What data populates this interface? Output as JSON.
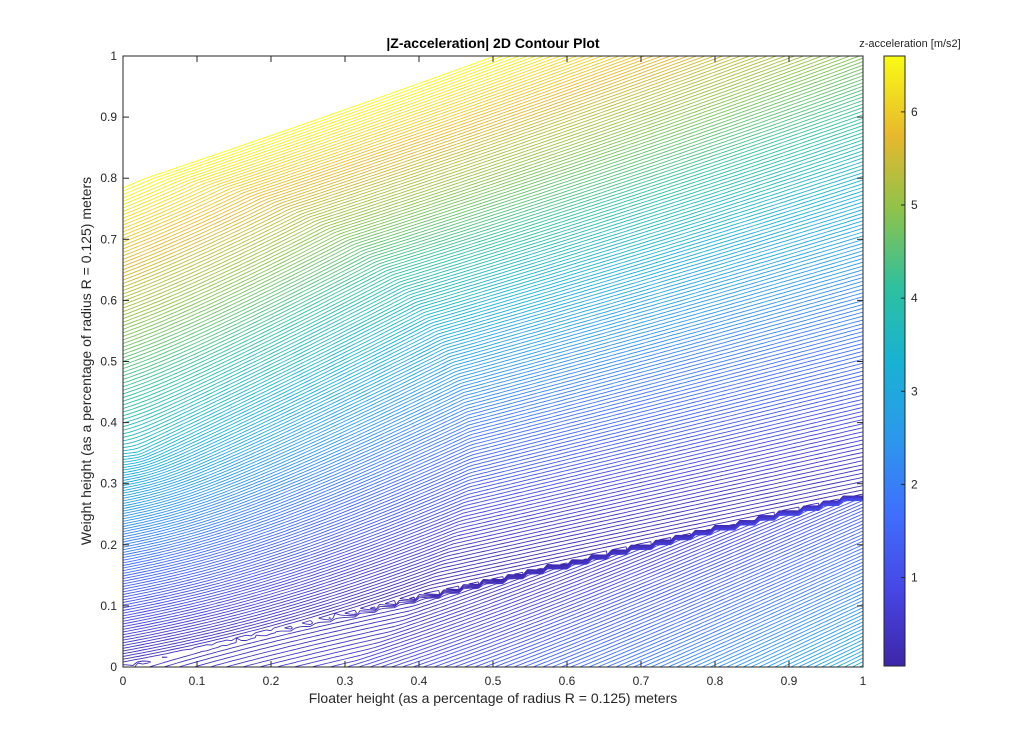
{
  "chart_data": {
    "type": "contour",
    "title": "|Z-acceleration| 2D Contour Plot",
    "xlabel": "Floater height (as a percentage of radius R = 0.125) meters",
    "ylabel": "Weight height (as a percentage of radius R = 0.125) meters",
    "xlim": [
      0,
      1
    ],
    "ylim": [
      0,
      1
    ],
    "x_ticks": [
      "0",
      "0.1",
      "0.2",
      "0.3",
      "0.4",
      "0.5",
      "0.6",
      "0.7",
      "0.8",
      "0.9",
      "1"
    ],
    "y_ticks": [
      "0",
      "0.1",
      "0.2",
      "0.3",
      "0.4",
      "0.5",
      "0.6",
      "0.7",
      "0.8",
      "0.9",
      "1"
    ],
    "colorbar": {
      "label": "z-acceleration [m/s2]",
      "range": [
        0.05,
        6.6
      ],
      "ticks": [
        "1",
        "2",
        "3",
        "4",
        "5",
        "6"
      ],
      "tick_values": [
        1,
        2,
        3,
        4,
        5,
        6
      ],
      "colormap": "parula"
    },
    "grid": false,
    "min_curve": {
      "description_points_x": [
        0.33,
        1.0
      ],
      "description_points_y": [
        0.1,
        0.28
      ]
    },
    "levels": 160
  }
}
